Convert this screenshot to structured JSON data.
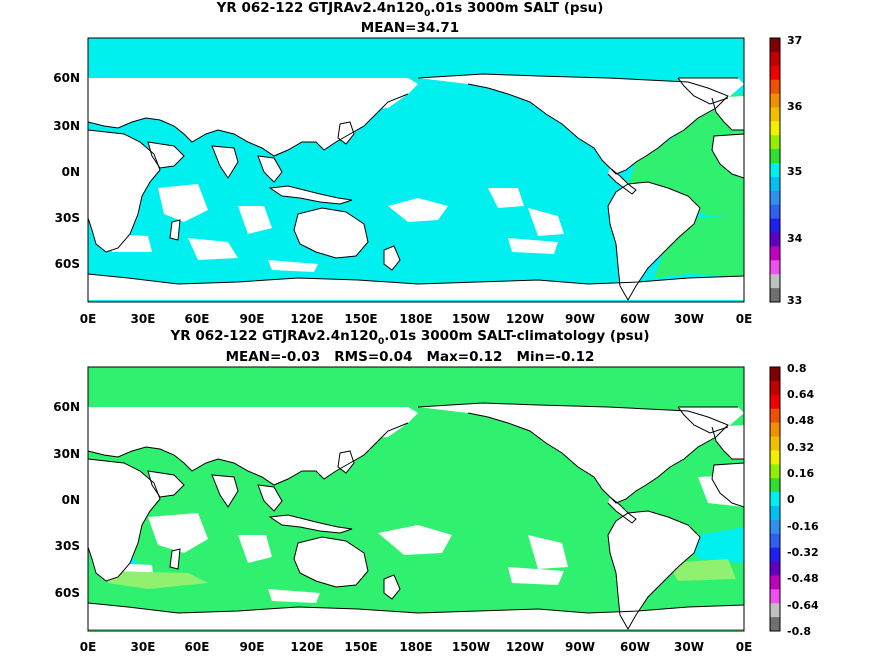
{
  "colors": {
    "land": "#ffffff",
    "coast": "#000000",
    "ocean_top": "#00f0f0",
    "ocean_green": "#30f070",
    "ocean_light_green": "#90f070",
    "ocean_white": "#ffffff"
  },
  "panels": [
    {
      "id": "top",
      "title_main": "YR 062-122 GTJRAv2.4n120",
      "title_sub": "0",
      "title_tail": ".01s 3000m SALT (psu)",
      "subtitle": "MEAN=34.71",
      "lat_labels": [
        "60N",
        "30N",
        "0N",
        "30S",
        "60S"
      ],
      "lon_labels": [
        "0E",
        "30E",
        "60E",
        "90E",
        "120E",
        "150E",
        "180E",
        "150W",
        "120W",
        "90W",
        "60W",
        "30W",
        "0E"
      ],
      "colorbar": {
        "labels": [
          "37",
          "36",
          "35",
          "34",
          "33"
        ],
        "colors": [
          "#800000",
          "#c00000",
          "#f00000",
          "#f05000",
          "#f09000",
          "#f0c000",
          "#f0f000",
          "#90f000",
          "#30e030",
          "#00f0f0",
          "#00c0f0",
          "#3090f0",
          "#3060f0",
          "#2020f0",
          "#6000c0",
          "#c000c0",
          "#f050f0",
          "#c0c0c0",
          "#707070"
        ]
      }
    },
    {
      "id": "bottom",
      "title_main": "YR 062-122 GTJRAv2.4n120",
      "title_sub": "0",
      "title_tail": ".01s 3000m SALT-climatology (psu)",
      "subtitle": "MEAN=-0.03   RMS=0.04   Max=0.12   Min=-0.12",
      "lat_labels": [
        "60N",
        "30N",
        "0N",
        "30S",
        "60S"
      ],
      "lon_labels": [
        "0E",
        "30E",
        "60E",
        "90E",
        "120E",
        "150E",
        "180E",
        "150W",
        "120W",
        "90W",
        "60W",
        "30W",
        "0E"
      ],
      "colorbar": {
        "labels": [
          "0.8",
          "0.64",
          "0.48",
          "0.32",
          "0.16",
          "0",
          "-0.16",
          "-0.32",
          "-0.48",
          "-0.64",
          "-0.8"
        ],
        "colors": [
          "#800000",
          "#c00000",
          "#f00000",
          "#f05000",
          "#f09000",
          "#f0c000",
          "#f0f000",
          "#90f000",
          "#30e030",
          "#00f0f0",
          "#00c0f0",
          "#3090f0",
          "#3060f0",
          "#2020f0",
          "#6000c0",
          "#c000c0",
          "#f050f0",
          "#c0c0c0",
          "#707070"
        ]
      }
    }
  ]
}
